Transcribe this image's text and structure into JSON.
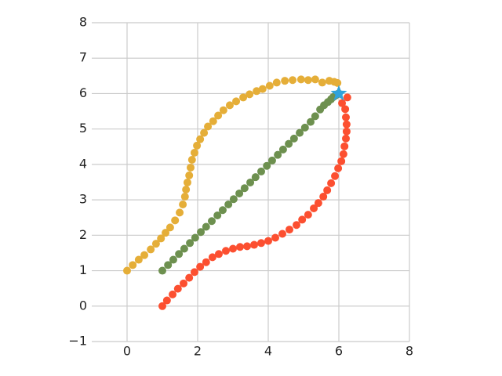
{
  "chart_data": {
    "type": "scatter",
    "xlim": [
      -1,
      8
    ],
    "ylim": [
      -1,
      8
    ],
    "xticks": [
      0,
      2,
      4,
      6,
      8
    ],
    "yticks": [
      {
        "value": -1,
        "label": "−1"
      },
      0,
      1,
      2,
      3,
      4,
      5,
      6,
      7,
      8
    ],
    "grid": true,
    "series": [
      {
        "color": "#e5ae38",
        "marker": "circle",
        "x": [
          0,
          0.16,
          0.33,
          0.49,
          0.67,
          0.82,
          0.96,
          1.09,
          1.22,
          1.36,
          1.49,
          1.58,
          1.64,
          1.67,
          1.71,
          1.76,
          1.8,
          1.84,
          1.91,
          1.98,
          2.07,
          2.18,
          2.29,
          2.44,
          2.58,
          2.73,
          2.91,
          3.09,
          3.29,
          3.47,
          3.67,
          3.84,
          4.04,
          4.24,
          4.47,
          4.69,
          4.93,
          5.13,
          5.33,
          5.53,
          5.73,
          5.87,
          5.96
        ],
        "values": [
          1,
          1.16,
          1.31,
          1.44,
          1.6,
          1.76,
          1.91,
          2.07,
          2.22,
          2.42,
          2.64,
          2.87,
          3.09,
          3.29,
          3.49,
          3.69,
          3.91,
          4.13,
          4.33,
          4.53,
          4.71,
          4.89,
          5.07,
          5.22,
          5.38,
          5.53,
          5.67,
          5.78,
          5.89,
          5.98,
          6.07,
          6.13,
          6.22,
          6.31,
          6.36,
          6.38,
          6.4,
          6.38,
          6.4,
          6.31,
          6.36,
          6.33,
          6.3
        ]
      },
      {
        "color": "#6d904f",
        "marker": "circle",
        "x": [
          1,
          1.16,
          1.31,
          1.47,
          1.62,
          1.78,
          1.93,
          2.09,
          2.24,
          2.4,
          2.56,
          2.71,
          2.87,
          3.02,
          3.18,
          3.33,
          3.49,
          3.64,
          3.8,
          3.96,
          4.11,
          4.27,
          4.42,
          4.58,
          4.73,
          4.89,
          5.04,
          5.2,
          5.33,
          5.47,
          5.58,
          5.69,
          5.78,
          5.84,
          5.9,
          5.94,
          5.97,
          6
        ],
        "values": [
          1,
          1.16,
          1.31,
          1.47,
          1.62,
          1.78,
          1.93,
          2.09,
          2.24,
          2.4,
          2.56,
          2.71,
          2.87,
          3.02,
          3.18,
          3.33,
          3.49,
          3.64,
          3.8,
          3.96,
          4.11,
          4.27,
          4.42,
          4.58,
          4.73,
          4.89,
          5.04,
          5.2,
          5.36,
          5.55,
          5.67,
          5.76,
          5.84,
          5.9,
          5.94,
          5.97,
          5.99,
          6
        ]
      },
      {
        "color": "#fc4f30",
        "marker": "circle",
        "x": [
          1,
          1.13,
          1.29,
          1.44,
          1.6,
          1.76,
          1.91,
          2.07,
          2.24,
          2.42,
          2.6,
          2.8,
          3,
          3.2,
          3.4,
          3.6,
          3.8,
          4,
          4.2,
          4.4,
          4.6,
          4.8,
          4.96,
          5.13,
          5.29,
          5.42,
          5.56,
          5.67,
          5.78,
          5.89,
          5.98,
          6.07,
          6.13,
          6.16,
          6.2,
          6.22,
          6.22,
          6.2,
          6.18,
          6.09,
          6.24
        ],
        "values": [
          0,
          0.16,
          0.33,
          0.49,
          0.64,
          0.8,
          0.96,
          1.11,
          1.24,
          1.38,
          1.47,
          1.56,
          1.62,
          1.67,
          1.69,
          1.73,
          1.78,
          1.84,
          1.93,
          2.04,
          2.16,
          2.29,
          2.44,
          2.58,
          2.76,
          2.91,
          3.09,
          3.27,
          3.47,
          3.67,
          3.89,
          4.09,
          4.29,
          4.51,
          4.73,
          4.93,
          5.13,
          5.33,
          5.56,
          5.73,
          5.89
        ]
      },
      {
        "color": "#30a2da",
        "marker": "star",
        "x": [
          6
        ],
        "values": [
          6
        ]
      }
    ]
  }
}
